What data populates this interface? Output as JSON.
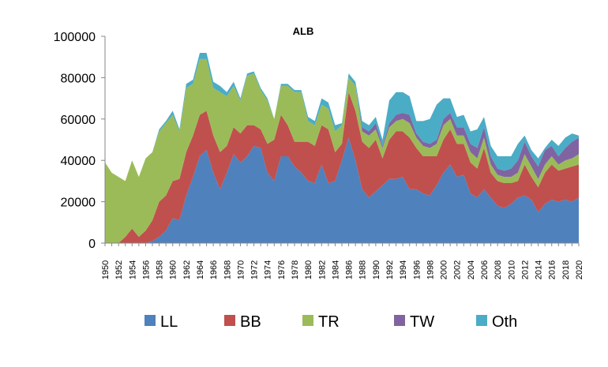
{
  "chart_data": {
    "type": "area",
    "stacked": true,
    "title": "ALB",
    "xlabel": "",
    "ylabel": "",
    "ylim": [
      0,
      100000
    ],
    "yticks": [
      0,
      20000,
      40000,
      60000,
      80000,
      100000
    ],
    "xlim": [
      1950,
      2020
    ],
    "xtick_step": 2,
    "grid": false,
    "legend_position": "bottom",
    "x": [
      1950,
      1951,
      1952,
      1953,
      1954,
      1955,
      1956,
      1957,
      1958,
      1959,
      1960,
      1961,
      1962,
      1963,
      1964,
      1965,
      1966,
      1967,
      1968,
      1969,
      1970,
      1971,
      1972,
      1973,
      1974,
      1975,
      1976,
      1977,
      1978,
      1979,
      1980,
      1981,
      1982,
      1983,
      1984,
      1985,
      1986,
      1987,
      1988,
      1989,
      1990,
      1991,
      1992,
      1993,
      1994,
      1995,
      1996,
      1997,
      1998,
      1999,
      2000,
      2001,
      2002,
      2003,
      2004,
      2005,
      2006,
      2007,
      2008,
      2009,
      2010,
      2011,
      2012,
      2013,
      2014,
      2015,
      2016,
      2017,
      2018,
      2019,
      2020
    ],
    "series": [
      {
        "name": "LL",
        "color": "#4F81BD",
        "values": [
          0,
          0,
          0,
          0,
          0,
          0,
          0,
          1000,
          3000,
          6000,
          12000,
          11000,
          23000,
          32000,
          42000,
          45000,
          34000,
          26000,
          34000,
          43000,
          39000,
          42000,
          47000,
          46000,
          34000,
          30000,
          42000,
          42000,
          37000,
          34000,
          30000,
          29000,
          38000,
          29000,
          30000,
          40000,
          51000,
          40000,
          26000,
          22000,
          25000,
          28000,
          31000,
          31000,
          32000,
          26000,
          26000,
          24000,
          23000,
          28000,
          34000,
          38000,
          32000,
          33000,
          24000,
          22000,
          26000,
          22000,
          18000,
          17000,
          19000,
          22000,
          23000,
          21000,
          15000,
          19000,
          21000,
          20000,
          21000,
          20000,
          22000
        ]
      },
      {
        "name": "BB",
        "color": "#C0504D",
        "values": [
          0,
          0,
          0,
          3000,
          7000,
          3000,
          6000,
          10000,
          17000,
          17000,
          18000,
          20000,
          21000,
          20000,
          20000,
          19000,
          18000,
          18000,
          13000,
          13000,
          14000,
          15000,
          10000,
          9000,
          14000,
          20000,
          20000,
          15000,
          12000,
          15000,
          19000,
          18000,
          19000,
          26000,
          14000,
          8000,
          22000,
          24000,
          23000,
          24000,
          25000,
          13000,
          19000,
          23000,
          22000,
          25000,
          20000,
          18000,
          19000,
          14000,
          16000,
          17000,
          16000,
          15000,
          15000,
          14000,
          20000,
          12000,
          12000,
          12000,
          10000,
          8000,
          15000,
          11000,
          12000,
          15000,
          17000,
          15000,
          15000,
          17000,
          16000
        ]
      },
      {
        "name": "TR",
        "color": "#9BBB59",
        "values": [
          39000,
          34000,
          32000,
          27000,
          33000,
          29000,
          35000,
          33000,
          34000,
          35000,
          32000,
          23000,
          31000,
          25000,
          27000,
          25000,
          23000,
          29000,
          24000,
          20000,
          16000,
          24000,
          25000,
          19000,
          21000,
          10000,
          14000,
          19000,
          24000,
          24000,
          10000,
          10000,
          10000,
          10000,
          10000,
          9000,
          7000,
          12000,
          5000,
          6000,
          5000,
          5000,
          6000,
          5000,
          6000,
          7000,
          5000,
          5000,
          4000,
          6000,
          7000,
          5000,
          4000,
          4000,
          5000,
          5000,
          5000,
          4000,
          3000,
          3000,
          3000,
          4000,
          5000,
          5000,
          4000,
          4000,
          4000,
          3000,
          4000,
          4000,
          5000
        ]
      },
      {
        "name": "TW",
        "color": "#8064A2",
        "values": [
          0,
          0,
          0,
          0,
          0,
          0,
          0,
          0,
          0,
          0,
          0,
          0,
          0,
          0,
          0,
          0,
          0,
          0,
          0,
          0,
          0,
          0,
          0,
          0,
          0,
          0,
          0,
          0,
          0,
          0,
          0,
          0,
          0,
          0,
          0,
          0,
          0,
          0,
          2000,
          2000,
          3000,
          1000,
          2000,
          3000,
          3000,
          4000,
          2000,
          2000,
          2000,
          2000,
          3000,
          3000,
          4000,
          4000,
          4000,
          5000,
          5000,
          4000,
          3000,
          3000,
          4000,
          6000,
          6000,
          5000,
          6000,
          7000,
          5000,
          4000,
          6000,
          8000,
          8000
        ]
      },
      {
        "name": "Oth",
        "color": "#4BACC6",
        "values": [
          0,
          0,
          0,
          0,
          0,
          0,
          0,
          0,
          1000,
          1000,
          2000,
          1000,
          2000,
          2000,
          3000,
          3000,
          3000,
          3000,
          2000,
          2000,
          1000,
          1000,
          1000,
          1000,
          1000,
          0,
          1000,
          1000,
          1000,
          1000,
          2000,
          2000,
          3000,
          3000,
          3000,
          1000,
          2000,
          2000,
          3000,
          3000,
          3000,
          3000,
          11000,
          11000,
          10000,
          9000,
          6000,
          10000,
          12000,
          17000,
          10000,
          7000,
          5000,
          6000,
          6000,
          9000,
          5000,
          5000,
          6000,
          7000,
          6000,
          8000,
          3000,
          3000,
          4000,
          1000,
          3000,
          5000,
          5000,
          4000,
          1000
        ]
      }
    ]
  }
}
